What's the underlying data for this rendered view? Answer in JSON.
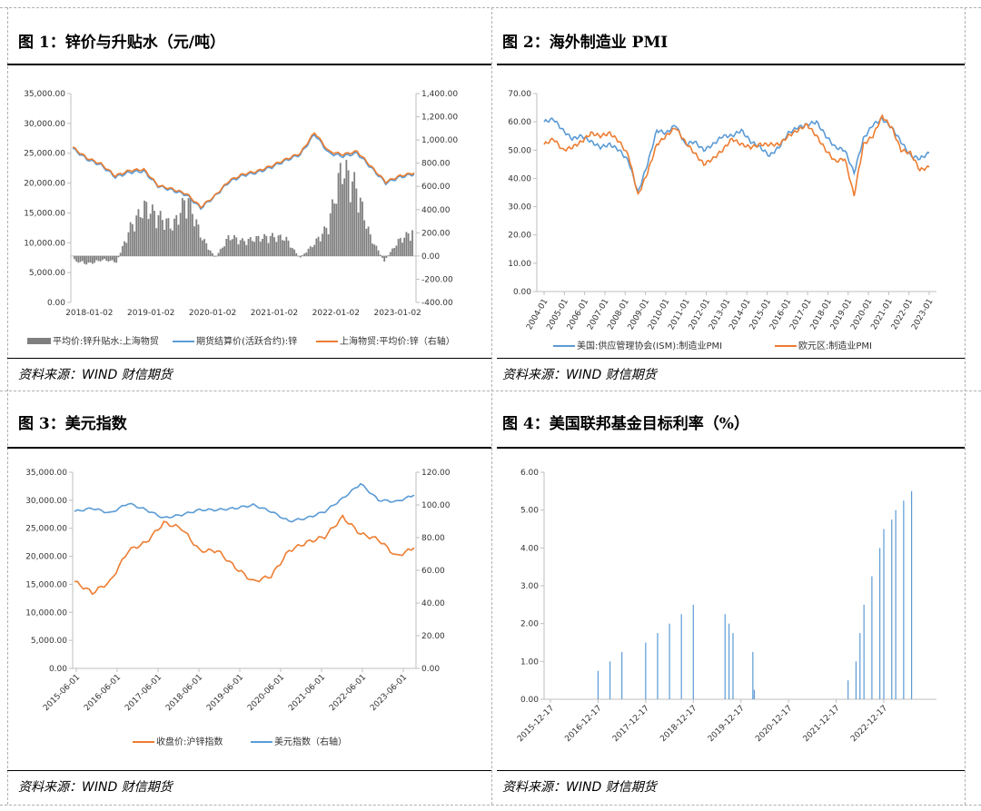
{
  "panels": [
    {
      "title": "图 1：锌价与升贴水（元/吨）",
      "source": "资料来源：WIND  财信期货"
    },
    {
      "title": "图 2：海外制造业 PMI",
      "source": "资料来源：WIND  财信期货"
    },
    {
      "title": "图 3：美元指数",
      "source": "资料来源：WIND  财信期货"
    },
    {
      "title": "图 4：美国联邦基金目标利率（%）",
      "source": "资料来源：WIND  财信期货"
    }
  ],
  "colors": {
    "blue": "#5b9bd5",
    "orange": "#ed7d31",
    "gray": "#7f7f7f",
    "axis": "#bfbfbf"
  },
  "chart_data": [
    {
      "type": "line",
      "x_tick_labels": [
        "2018-01-02",
        "2019-01-02",
        "2020-01-02",
        "2021-01-02",
        "2022-01-02",
        "2023-01-02"
      ],
      "y_tick_labels": [
        "0.00",
        "5,000.00",
        "10,000.00",
        "15,000.00",
        "20,000.00",
        "25,000.00",
        "30,000.00",
        "35,000.00"
      ],
      "y2_tick_labels": [
        "-400.00",
        "-200.00",
        "0.00",
        "200.00",
        "400.00",
        "600.00",
        "800.00",
        "1,000.00",
        "1,200.00",
        "1,400.00"
      ],
      "ylim": [
        0,
        35000
      ],
      "y2lim": [
        -400,
        1400
      ],
      "x": [
        "2018-01",
        "2018-04",
        "2018-07",
        "2018-10",
        "2019-01",
        "2019-04",
        "2019-07",
        "2019-10",
        "2020-01",
        "2020-04",
        "2020-07",
        "2020-10",
        "2021-01",
        "2021-04",
        "2021-07",
        "2021-10",
        "2022-01",
        "2022-03",
        "2022-06",
        "2022-09",
        "2022-12",
        "2023-03",
        "2023-06",
        "2023-09",
        "2023-12"
      ],
      "series": [
        {
          "name": "平均价:锌升贴水:上海物贸",
          "type": "bar",
          "axis": "right",
          "values": [
            -50,
            -80,
            -40,
            -60,
            300,
            500,
            400,
            300,
            600,
            200,
            -20,
            200,
            150,
            180,
            200,
            180,
            -20,
            120,
            300,
            900,
            700,
            200,
            -50,
            150,
            250
          ]
        },
        {
          "name": "期货结算价(活跃合约):锌",
          "type": "line",
          "axis": "left",
          "values": [
            25800,
            24000,
            23000,
            21000,
            21800,
            22000,
            19500,
            18800,
            18000,
            15800,
            17800,
            20200,
            21300,
            21800,
            22700,
            23800,
            24800,
            28200,
            25000,
            24500,
            25000,
            22500,
            20000,
            21000,
            21500
          ]
        },
        {
          "name": "上海物贸:平均价:锌（右轴）",
          "type": "line",
          "axis": "left",
          "values": [
            26000,
            24200,
            23200,
            21200,
            22100,
            22300,
            19600,
            19000,
            18200,
            16000,
            17900,
            20400,
            21500,
            22000,
            22900,
            24000,
            25000,
            28500,
            25300,
            24800,
            25300,
            22700,
            20200,
            21200,
            21700
          ]
        }
      ]
    },
    {
      "type": "line",
      "x_tick_labels": [
        "2004-01",
        "2005-01",
        "2006-01",
        "2007-01",
        "2008-01",
        "2009-01",
        "2010-01",
        "2011-01",
        "2012-01",
        "2013-01",
        "2014-01",
        "2015-01",
        "2016-01",
        "2017-01",
        "2018-01",
        "2019-01",
        "2020-01",
        "2021-01",
        "2022-01",
        "2023-01"
      ],
      "y_tick_labels": [
        "0.00",
        "10.00",
        "20.00",
        "30.00",
        "40.00",
        "50.00",
        "60.00",
        "70.00"
      ],
      "ylim": [
        0,
        70
      ],
      "x": [
        "2004-01",
        "2004-07",
        "2005-01",
        "2005-07",
        "2006-01",
        "2006-07",
        "2007-01",
        "2007-07",
        "2008-01",
        "2008-07",
        "2009-01",
        "2009-07",
        "2010-01",
        "2010-07",
        "2011-01",
        "2011-07",
        "2012-01",
        "2012-07",
        "2013-01",
        "2013-07",
        "2014-01",
        "2014-07",
        "2015-01",
        "2015-07",
        "2016-01",
        "2016-07",
        "2017-01",
        "2017-07",
        "2018-01",
        "2018-07",
        "2019-01",
        "2019-07",
        "2020-01",
        "2020-04",
        "2020-07",
        "2021-01",
        "2021-07",
        "2022-01",
        "2022-07",
        "2023-01",
        "2023-07",
        "2023-12"
      ],
      "series": [
        {
          "name": "美国:供应管理协会(ISM):制造业PMI",
          "values": [
            60,
            61,
            57,
            54,
            55,
            53,
            51,
            52,
            50,
            46,
            35,
            45,
            57,
            56,
            59,
            52,
            53,
            50,
            52,
            55,
            55,
            57,
            53,
            51,
            48,
            51,
            56,
            58,
            59,
            60,
            55,
            51,
            50,
            42,
            54,
            59,
            61,
            58,
            53,
            48,
            47,
            49
          ]
        },
        {
          "name": "欧元区:制造业PMI",
          "values": [
            52,
            54,
            50,
            51,
            53,
            56,
            55,
            56,
            53,
            48,
            34,
            42,
            52,
            55,
            58,
            53,
            49,
            45,
            47,
            50,
            54,
            52,
            51,
            52,
            52,
            52,
            55,
            57,
            59,
            55,
            50,
            46,
            47,
            34,
            52,
            55,
            62,
            58,
            50,
            49,
            43,
            44
          ]
        }
      ]
    },
    {
      "type": "line",
      "x_tick_labels": [
        "2015-06-01",
        "2016-06-01",
        "2017-06-01",
        "2018-06-01",
        "2019-06-01",
        "2020-06-01",
        "2021-06-01",
        "2022-06-01",
        "2023-06-01"
      ],
      "y_tick_labels": [
        "0.00",
        "5,000.00",
        "10,000.00",
        "15,000.00",
        "20,000.00",
        "25,000.00",
        "30,000.00",
        "35,000.00"
      ],
      "y2_tick_labels": [
        "0.00",
        "20.00",
        "40.00",
        "60.00",
        "80.00",
        "100.00",
        "120.00"
      ],
      "ylim": [
        0,
        35000
      ],
      "y2lim": [
        0,
        120
      ],
      "x": [
        "2015-06",
        "2015-12",
        "2016-06",
        "2016-12",
        "2017-06",
        "2017-12",
        "2018-06",
        "2018-12",
        "2019-06",
        "2019-12",
        "2020-03",
        "2020-06",
        "2020-12",
        "2021-06",
        "2021-12",
        "2022-06",
        "2022-10",
        "2023-03",
        "2023-06",
        "2023-12"
      ],
      "series": [
        {
          "name": "收盘价:沪锌指数",
          "axis": "left",
          "values": [
            15500,
            13500,
            15500,
            21000,
            22500,
            26000,
            25000,
            21000,
            21000,
            18000,
            15500,
            16500,
            21000,
            22500,
            23500,
            27000,
            24000,
            23000,
            20000,
            21500
          ]
        },
        {
          "name": "美元指数（右轴）",
          "axis": "right",
          "values": [
            96,
            98,
            95,
            101,
            97,
            92,
            94,
            97,
            97,
            98,
            100,
            96,
            90,
            92,
            96,
            104,
            113,
            103,
            102,
            106
          ]
        }
      ]
    },
    {
      "type": "bar",
      "x_tick_labels": [
        "2015-12-17",
        "2016-12-17",
        "2017-12-17",
        "2018-12-17",
        "2019-12-17",
        "2020-12-17",
        "2021-12-17",
        "2022-12-17"
      ],
      "y_tick_labels": [
        "0.00",
        "1.00",
        "2.00",
        "3.00",
        "4.00",
        "5.00",
        "6.00"
      ],
      "ylim": [
        0,
        6
      ],
      "categories": [
        "2016-12",
        "2017-03",
        "2017-06",
        "2017-12",
        "2018-03",
        "2018-06",
        "2018-09",
        "2018-12",
        "2019-08",
        "2019-09",
        "2019-10",
        "2020-03",
        "2020-03b",
        "2022-03",
        "2022-05",
        "2022-06",
        "2022-07",
        "2022-09",
        "2022-11",
        "2022-12",
        "2023-02",
        "2023-03",
        "2023-05",
        "2023-07"
      ],
      "values": [
        0.75,
        1.0,
        1.25,
        1.5,
        1.75,
        2.0,
        2.25,
        2.5,
        2.25,
        2.0,
        1.75,
        1.25,
        0.25,
        0.5,
        1.0,
        1.75,
        2.5,
        3.25,
        4.0,
        4.5,
        4.75,
        5.0,
        5.25,
        5.5
      ]
    }
  ]
}
